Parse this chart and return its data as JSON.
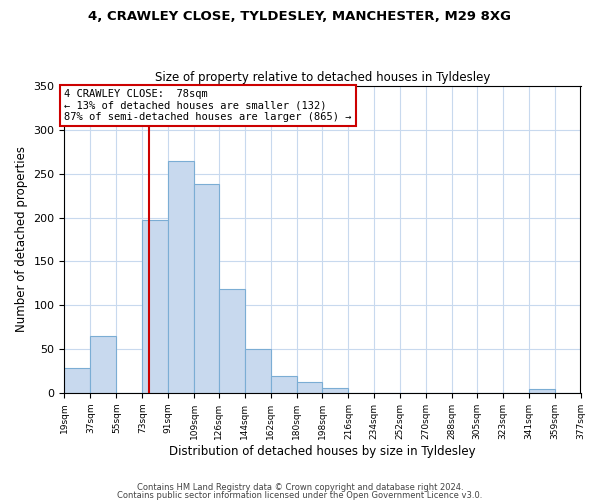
{
  "title1": "4, CRAWLEY CLOSE, TYLDESLEY, MANCHESTER, M29 8XG",
  "title2": "Size of property relative to detached houses in Tyldesley",
  "xlabel": "Distribution of detached houses by size in Tyldesley",
  "ylabel": "Number of detached properties",
  "footer1": "Contains HM Land Registry data © Crown copyright and database right 2024.",
  "footer2": "Contains public sector information licensed under the Open Government Licence v3.0.",
  "bin_labels": [
    "19sqm",
    "37sqm",
    "55sqm",
    "73sqm",
    "91sqm",
    "109sqm",
    "126sqm",
    "144sqm",
    "162sqm",
    "180sqm",
    "198sqm",
    "216sqm",
    "234sqm",
    "252sqm",
    "270sqm",
    "288sqm",
    "305sqm",
    "323sqm",
    "341sqm",
    "359sqm",
    "377sqm"
  ],
  "bar_values": [
    28,
    65,
    0,
    197,
    265,
    238,
    118,
    50,
    19,
    12,
    5,
    0,
    0,
    0,
    0,
    0,
    0,
    0,
    4,
    0,
    0
  ],
  "bar_color": "#c8d9ee",
  "bar_edge_color": "#7badd4",
  "vline_x": 78,
  "bin_edges": [
    19,
    37,
    55,
    73,
    91,
    109,
    126,
    144,
    162,
    180,
    198,
    216,
    234,
    252,
    270,
    288,
    305,
    323,
    341,
    359,
    377
  ],
  "ylim": [
    0,
    350
  ],
  "yticks": [
    0,
    50,
    100,
    150,
    200,
    250,
    300,
    350
  ],
  "annotation_title": "4 CRAWLEY CLOSE:  78sqm",
  "annotation_line1": "← 13% of detached houses are smaller (132)",
  "annotation_line2": "87% of semi-detached houses are larger (865) →",
  "vline_color": "#cc0000",
  "box_edge_color": "#cc0000",
  "background_color": "#ffffff",
  "grid_color": "#c8d9ee"
}
